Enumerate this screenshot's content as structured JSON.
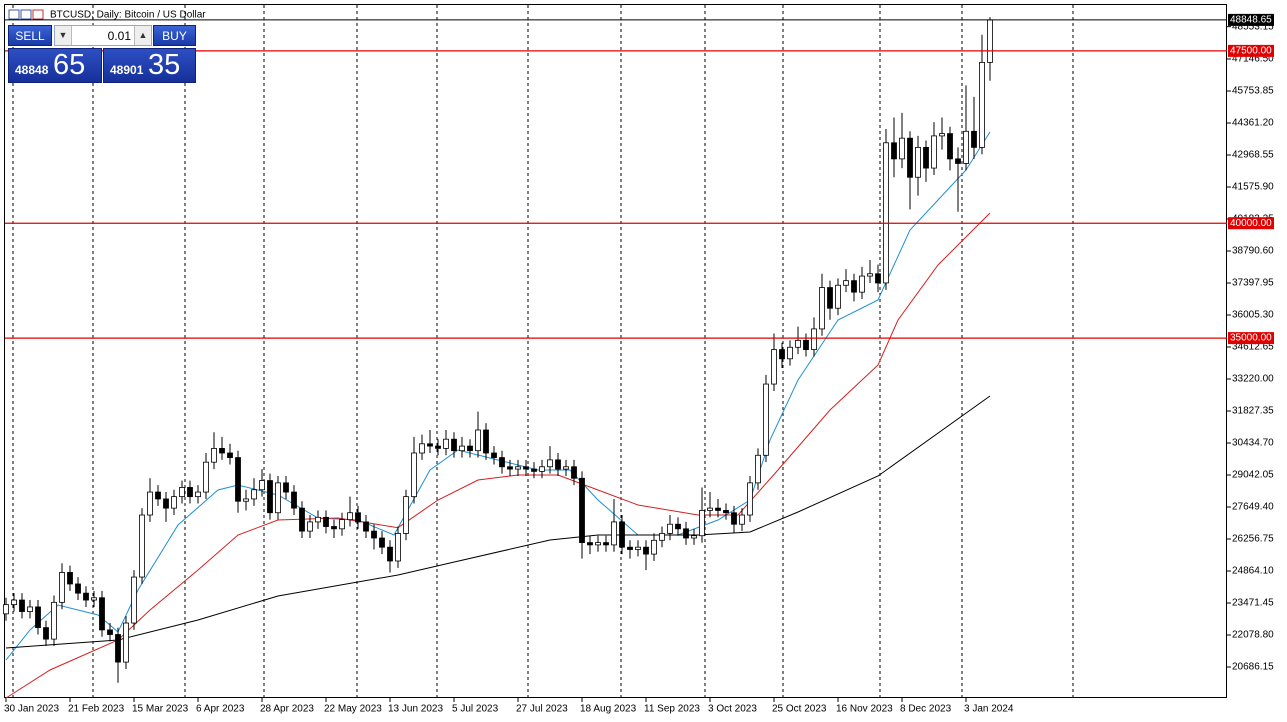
{
  "chart_data": {
    "type": "candlestick",
    "title": "BTCUSD, Daily:  Bitcoin / US Dollar",
    "x": [
      0,
      2,
      4,
      6,
      8,
      10,
      12,
      14,
      16,
      18,
      20,
      22,
      24,
      26,
      28,
      30,
      32,
      34,
      36,
      38,
      40,
      42,
      44,
      46,
      48,
      50,
      52,
      54,
      56,
      58,
      60,
      62,
      64,
      66,
      68,
      70,
      72,
      74,
      76,
      78,
      80,
      82,
      84,
      86,
      88,
      90,
      92,
      94,
      96,
      98,
      100,
      102,
      104,
      106,
      108,
      110,
      112,
      114,
      116,
      118,
      120,
      122,
      124,
      126,
      128,
      130,
      132,
      134,
      136,
      138,
      140,
      142,
      144,
      146,
      148,
      150,
      152,
      154,
      156,
      158,
      160,
      162,
      164,
      166,
      168,
      170,
      172,
      174,
      176,
      178,
      180,
      182,
      184,
      186,
      188,
      190,
      192,
      194,
      196,
      198,
      200,
      202,
      204,
      206,
      208,
      210,
      212,
      214,
      216,
      218,
      220,
      222,
      224,
      226,
      228,
      230,
      232,
      234,
      236,
      238,
      240,
      242,
      244,
      246
    ],
    "open": [
      23000,
      23400,
      23600,
      23100,
      23300,
      22400,
      21900,
      23500,
      24800,
      24300,
      23900,
      23600,
      23700,
      22300,
      22100,
      20900,
      22600,
      24600,
      27300,
      28300,
      28000,
      27600,
      28100,
      28500,
      28100,
      28300,
      29600,
      30200,
      30000,
      29800,
      27900,
      28000,
      28400,
      28800,
      27400,
      28700,
      28300,
      27600,
      26600,
      27000,
      27200,
      26800,
      26700,
      27100,
      27400,
      27000,
      26600,
      26300,
      25900,
      25300,
      26500,
      28100,
      30000,
      30400,
      30300,
      30200,
      30600,
      30100,
      30300,
      30100,
      31000,
      30000,
      29800,
      29400,
      29300,
      29400,
      29300,
      29200,
      29400,
      29700,
      29300,
      29400,
      28900,
      26100,
      26000,
      26100,
      26000,
      27000,
      25900,
      25800,
      25900,
      25600,
      26200,
      26500,
      26900,
      26700,
      26300,
      26400,
      27500,
      27600,
      27500,
      27400,
      26900,
      27300,
      28700,
      29900,
      33000,
      34500,
      34100,
      34600,
      34900,
      34500,
      35400,
      37200,
      36300,
      37300,
      37500,
      37000,
      37700,
      37800,
      37400,
      43500,
      42800,
      43700,
      42000,
      43300,
      42400,
      43800,
      43900,
      42800,
      42600,
      44000,
      43300,
      47000
    ],
    "high": [
      23700,
      23900,
      23900,
      23600,
      23600,
      22700,
      23800,
      25200,
      25100,
      24600,
      24200,
      24000,
      24000,
      22600,
      22400,
      22900,
      24900,
      27600,
      28900,
      28600,
      28300,
      28400,
      28800,
      28800,
      28600,
      30000,
      30900,
      30700,
      30400,
      30100,
      28400,
      28900,
      29300,
      29100,
      29000,
      29000,
      28600,
      27900,
      27300,
      27500,
      27500,
      27100,
      27400,
      28100,
      27700,
      27300,
      26900,
      26600,
      26200,
      26800,
      28400,
      30700,
      30800,
      31000,
      30600,
      31000,
      30900,
      30700,
      30600,
      31800,
      31300,
      30300,
      30100,
      29700,
      29700,
      29700,
      29600,
      29700,
      30300,
      30000,
      29700,
      29700,
      29200,
      26400,
      26400,
      26400,
      28000,
      27300,
      26200,
      26200,
      26200,
      26500,
      26800,
      27300,
      27200,
      27000,
      26700,
      28500,
      28300,
      28000,
      27800,
      27700,
      27600,
      29000,
      30200,
      33400,
      35200,
      34800,
      34900,
      35500,
      35200,
      35900,
      37800,
      37500,
      37600,
      38000,
      37800,
      38100,
      38400,
      38200,
      44100,
      44600,
      44800,
      44000,
      43800,
      43600,
      44400,
      44600,
      44200,
      43300,
      46000,
      45500,
      48200,
      48970
    ],
    "low": [
      22700,
      23100,
      22800,
      22800,
      22100,
      21600,
      21600,
      23200,
      24000,
      23600,
      23300,
      23300,
      22000,
      21800,
      20000,
      20600,
      22300,
      24300,
      27000,
      27700,
      27000,
      27300,
      27800,
      27800,
      27800,
      28000,
      29300,
      29700,
      29500,
      27400,
      27500,
      27700,
      28100,
      27100,
      27100,
      28000,
      27300,
      26300,
      26300,
      26700,
      26500,
      26300,
      26400,
      26800,
      26700,
      26300,
      25800,
      25600,
      24800,
      25000,
      26200,
      27800,
      29700,
      30000,
      29900,
      29900,
      29800,
      29800,
      29800,
      29800,
      29700,
      29500,
      29100,
      29000,
      29000,
      29000,
      28900,
      28900,
      29100,
      29000,
      29000,
      28600,
      25400,
      25600,
      25700,
      25700,
      25700,
      25600,
      25400,
      25500,
      24900,
      25300,
      25900,
      26200,
      26400,
      26000,
      26000,
      26100,
      27200,
      27200,
      27100,
      26500,
      26600,
      27000,
      28400,
      29600,
      32700,
      33700,
      33800,
      34300,
      34200,
      34200,
      35100,
      35800,
      36000,
      37000,
      36600,
      36700,
      37400,
      37000,
      37100,
      42000,
      42400,
      40600,
      41200,
      41800,
      42100,
      43200,
      42300,
      40500,
      42300,
      42800,
      43000,
      46200
    ],
    "close": [
      23400,
      23600,
      23100,
      23300,
      22400,
      21900,
      23500,
      24800,
      24300,
      23900,
      23600,
      23700,
      22300,
      22100,
      20900,
      22600,
      24600,
      27300,
      28300,
      28000,
      27600,
      28100,
      28500,
      28100,
      28300,
      29600,
      30200,
      30000,
      29800,
      27900,
      28000,
      28400,
      28800,
      27400,
      28700,
      28300,
      27600,
      26600,
      27000,
      27200,
      26800,
      26700,
      27100,
      27400,
      27000,
      26600,
      26300,
      25900,
      25300,
      26500,
      28100,
      30000,
      30400,
      30300,
      30200,
      30600,
      30100,
      30300,
      30100,
      31000,
      30000,
      29800,
      29400,
      29300,
      29400,
      29300,
      29200,
      29400,
      29700,
      29300,
      29400,
      28900,
      26100,
      26000,
      26100,
      26000,
      27000,
      25900,
      25800,
      25900,
      25600,
      26200,
      26500,
      26900,
      26700,
      26300,
      26400,
      27500,
      27600,
      27500,
      27400,
      26900,
      27300,
      28700,
      29900,
      33000,
      34500,
      34100,
      34600,
      34900,
      34500,
      35400,
      37200,
      36300,
      37300,
      37500,
      37000,
      37700,
      37800,
      37400,
      43500,
      42800,
      43700,
      42000,
      43300,
      42400,
      43800,
      43900,
      42800,
      42600,
      44000,
      43300,
      47000,
      48848.65
    ],
    "up_color": "#ffffff",
    "down_color": "#000000",
    "wick_color": "#000000",
    "lines": [
      {
        "color": "#1f8fd6",
        "x": [
          0,
          6,
          13,
          23,
          28,
          33,
          43,
          53,
          58,
          68,
          78,
          88,
          97,
          106,
          113,
          123,
          133,
          141,
          148,
          158,
          168,
          178,
          186,
          191,
          198,
          208,
          218,
          226,
          233,
          240,
          246
        ],
        "values": [
          20991,
          22296,
          23385,
          22949,
          22209,
          24037,
          26866,
          28389,
          28607,
          28172,
          27171,
          27084,
          26431,
          29260,
          30130,
          29695,
          29260,
          29260,
          27954,
          26431,
          26431,
          27084,
          27954,
          30565,
          33176,
          35787,
          36658,
          39704,
          41010,
          42316,
          43970
        ]
      },
      {
        "color": "#d42020",
        "x": [
          0,
          11,
          28,
          36,
          48,
          58,
          68,
          83,
          98,
          108,
          118,
          128,
          138,
          148,
          158,
          173,
          183,
          193,
          206,
          218,
          223,
          233,
          246
        ],
        "values": [
          19337,
          20556,
          21861,
          23167,
          24908,
          26431,
          27084,
          27171,
          26750,
          27954,
          28824,
          29042,
          29042,
          28389,
          27736,
          27301,
          27301,
          29260,
          31871,
          33829,
          35787,
          38181,
          40444
        ]
      },
      {
        "color": "#000000",
        "x": [
          0,
          28,
          48,
          68,
          98,
          111,
          136,
          148,
          173,
          186,
          198,
          218,
          246
        ],
        "values": [
          21513,
          21861,
          22732,
          23776,
          24690,
          25212,
          26213,
          26431,
          26431,
          26561,
          27432,
          28998,
          32480
        ]
      }
    ],
    "levels": [
      {
        "value": 47500,
        "label": "47500.00"
      },
      {
        "value": 40000,
        "label": "40000.00"
      },
      {
        "value": 35000,
        "label": "35000.00"
      }
    ],
    "level_color": "#e00000",
    "last_price": 48848.65,
    "xlim": [
      -0.25,
      305.25
    ],
    "xticks": [
      {
        "value": 0,
        "label": "30 Jan 2023"
      },
      {
        "value": 16,
        "label": "21 Feb 2023"
      },
      {
        "value": 32,
        "label": "15 Mar 2023"
      },
      {
        "value": 48,
        "label": "6 Apr 2023"
      },
      {
        "value": 64,
        "label": "28 Apr 2023"
      },
      {
        "value": 80,
        "label": "22 May 2023"
      },
      {
        "value": 96,
        "label": "13 Jun 2023"
      },
      {
        "value": 112,
        "label": "5 Jul 2023"
      },
      {
        "value": 128,
        "label": "27 Jul 2023"
      },
      {
        "value": 144,
        "label": "18 Aug 2023"
      },
      {
        "value": 160,
        "label": "11 Sep 2023"
      },
      {
        "value": 176,
        "label": "3 Oct 2023"
      },
      {
        "value": 192,
        "label": "25 Oct 2023"
      },
      {
        "value": 208,
        "label": "16 Nov 2023"
      },
      {
        "value": 224,
        "label": "8 Dec 2023"
      },
      {
        "value": 240,
        "label": "3 Jan 2024"
      }
    ],
    "ylim": [
      19337,
      48844
    ],
    "yticks": [
      48553.15,
      {
        "value": 47146.5,
        "label": "47146.50"
      },
      45753.85,
      {
        "value": 44361.2,
        "label": "44361.20"
      },
      42968.55,
      {
        "value": 41575.9,
        "label": "41575.90"
      },
      40183.25,
      {
        "value": 38790.6,
        "label": "38790.60"
      },
      37397.95,
      {
        "value": 36005.3,
        "label": "36005.30"
      },
      34612.65,
      {
        "value": 33220,
        "label": "33220.00"
      },
      31827.35,
      {
        "value": 30434.7,
        "label": "30434.70"
      },
      29042.05,
      {
        "value": 27649.4,
        "label": "27649.40"
      },
      26256.75,
      {
        "value": 24864.1,
        "label": "24864.10"
      },
      23471.45,
      {
        "value": 22078.8,
        "label": "22078.80"
      },
      20686.15
    ]
  },
  "trade_panel": {
    "sell": "SELL",
    "buy": "BUY",
    "volume": "0.01",
    "bid_main": "48848",
    "bid_frac": "65",
    "ask_main": "48901",
    "ask_frac": "35"
  }
}
